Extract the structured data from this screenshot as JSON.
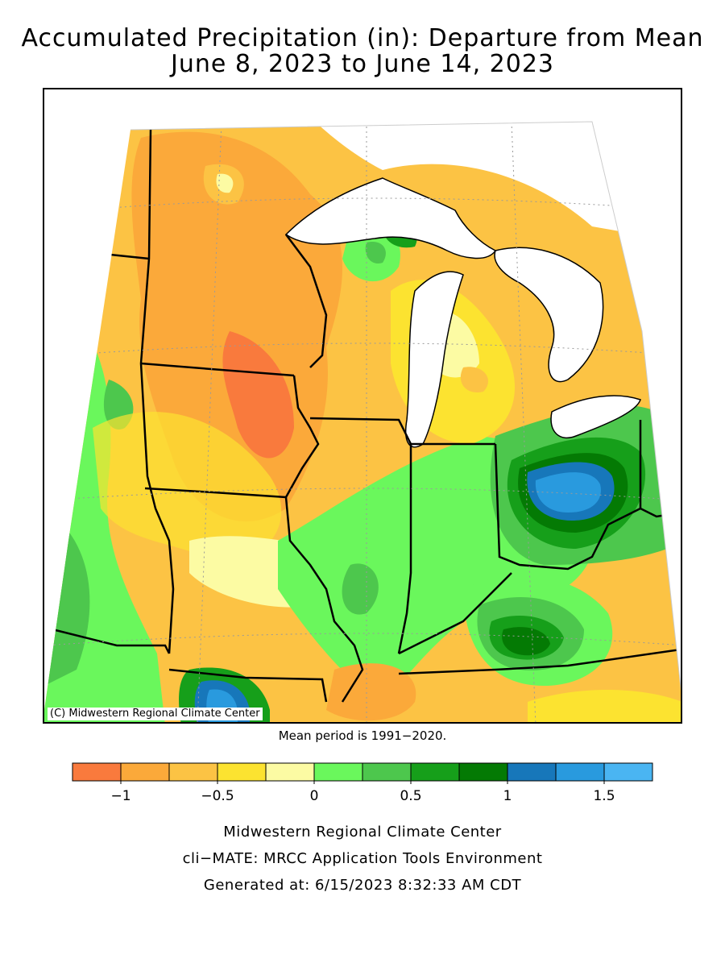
{
  "title": {
    "line1": "Accumulated Precipitation (in): Departure from Mean",
    "line2": "June 8, 2023 to June 14, 2023"
  },
  "map": {
    "credit": "(C) Midwestern Regional Climate Center",
    "mean_period": "Mean period is 1991−2020."
  },
  "legend": {
    "colors": [
      "#f97a3d",
      "#fba93a",
      "#fcc344",
      "#fce330",
      "#fcfba3",
      "#6af75c",
      "#4dc74d",
      "#169f1a",
      "#047a04",
      "#1777ba",
      "#299ade",
      "#4ab5f2"
    ],
    "tick_labels": [
      "−1",
      "−0.5",
      "0",
      "0.5",
      "1",
      "1.5"
    ],
    "tick_values": [
      -1,
      -0.5,
      0,
      0.5,
      1,
      1.5
    ]
  },
  "footer": {
    "line1": "Midwestern Regional Climate Center",
    "line2": "cli−MATE: MRCC Application Tools Environment",
    "line3": "Generated at: 6/15/2023 8:32:33 AM CDT"
  }
}
